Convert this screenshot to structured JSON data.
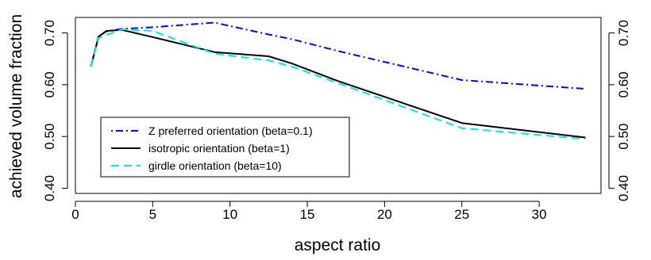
{
  "chart_data": {
    "type": "line",
    "xlabel": "aspect ratio",
    "ylabel": "achieved volume fraction",
    "xlim": [
      0,
      34
    ],
    "ylim": [
      0.39,
      0.73
    ],
    "xticks": [
      0,
      5,
      10,
      15,
      20,
      25,
      30
    ],
    "yticks": [
      0.4,
      0.5,
      0.6,
      0.7
    ],
    "ytick_labels": [
      "0.40",
      "0.50",
      "0.60",
      "0.70"
    ],
    "right_axis": true,
    "grid": false,
    "legend_position": "bottom-left",
    "series": [
      {
        "name": "Z preferred orientation (beta=0.1)",
        "color": "#0000ff",
        "style": "dotdash",
        "x": [
          1,
          1.5,
          2,
          3,
          5,
          9,
          12.5,
          14,
          17,
          25,
          33
        ],
        "y": [
          0.635,
          0.693,
          0.703,
          0.708,
          0.711,
          0.72,
          0.697,
          0.688,
          0.665,
          0.609,
          0.592
        ]
      },
      {
        "name": "isotropic orientation (beta=1)",
        "color": "#000000",
        "style": "solid",
        "x": [
          1,
          1.5,
          2,
          3,
          5,
          9,
          12.5,
          14,
          17,
          25,
          33
        ],
        "y": [
          0.635,
          0.693,
          0.704,
          0.706,
          0.692,
          0.663,
          0.655,
          0.641,
          0.607,
          0.526,
          0.498
        ]
      },
      {
        "name": "girdle orientation (beta=10)",
        "color": "#00e5ee",
        "style": "dashed",
        "x": [
          1,
          1.5,
          2,
          3,
          5,
          9,
          12.5,
          14,
          17,
          25,
          33
        ],
        "y": [
          0.635,
          0.69,
          0.696,
          0.707,
          0.704,
          0.66,
          0.647,
          0.635,
          0.603,
          0.516,
          0.495
        ]
      }
    ]
  }
}
